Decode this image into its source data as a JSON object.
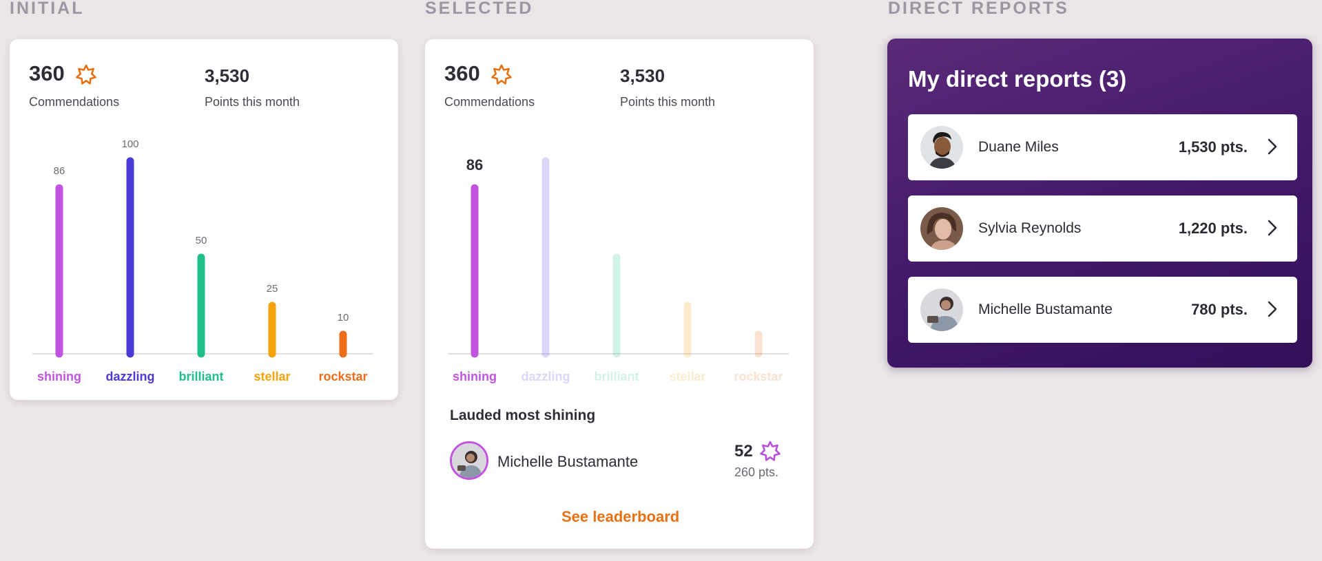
{
  "sections": {
    "initial": "INITIAL",
    "selected": "SELECTED",
    "direct_reports": "DIRECT REPORTS"
  },
  "stats": {
    "commendations_value": "360",
    "commendations_label": "Commendations",
    "points_value": "3,530",
    "points_label": "Points this month"
  },
  "colors": {
    "shining": "#c153e0",
    "dazzling": "#4a3ad8",
    "brilliant": "#1fbf8a",
    "stellar": "#f5a30c",
    "rockstar": "#ef6c1a",
    "star_orange": "#e67112",
    "star_purple": "#b550d8"
  },
  "chart_data": [
    {
      "type": "bar",
      "categories": [
        "shining",
        "dazzling",
        "brilliant",
        "stellar",
        "rockstar"
      ],
      "values": [
        86,
        100,
        50,
        25,
        10
      ],
      "title": "",
      "xlabel": "",
      "ylabel": "",
      "ylim": [
        0,
        100
      ],
      "grid": false
    },
    {
      "type": "bar",
      "categories": [
        "shining",
        "dazzling",
        "brilliant",
        "stellar",
        "rockstar"
      ],
      "values": [
        86,
        100,
        50,
        25,
        10
      ],
      "selected": "shining",
      "title": "",
      "xlabel": "",
      "ylabel": "",
      "ylim": [
        0,
        100
      ],
      "grid": false
    }
  ],
  "lauded": {
    "title": "Lauded most shining",
    "name": "Michelle Bustamante",
    "count": "52",
    "points": "260 pts.",
    "link": "See leaderboard"
  },
  "reports": {
    "title": "My direct reports (3)",
    "items": [
      {
        "name": "Duane Miles",
        "points": "1,530 pts."
      },
      {
        "name": "Sylvia Reynolds",
        "points": "1,220 pts."
      },
      {
        "name": "Michelle Bustamante",
        "points": "780 pts."
      }
    ]
  }
}
